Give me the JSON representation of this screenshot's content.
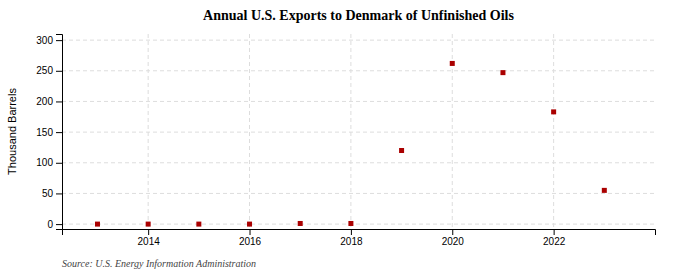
{
  "chart_data": {
    "type": "scatter",
    "title": "Annual U.S. Exports to Denmark of Unfinished Oils",
    "ylabel": "Thousand Barrels",
    "annotations": [
      "Source: U.S. Energy Information Administration"
    ],
    "x": [
      2013,
      2014,
      2015,
      2016,
      2017,
      2018,
      2019,
      2020,
      2021,
      2022,
      2023
    ],
    "values": [
      0,
      0,
      0,
      0,
      1,
      1,
      120,
      262,
      247,
      183,
      55
    ],
    "color": "#aa0000",
    "marker": "square",
    "xlim": [
      2012.3,
      2024.0
    ],
    "ylim": [
      -8,
      310
    ],
    "xticks": [
      2014,
      2016,
      2018,
      2020,
      2022
    ],
    "yticks": [
      0,
      50,
      100,
      150,
      200,
      250,
      300
    ],
    "grid": true
  }
}
